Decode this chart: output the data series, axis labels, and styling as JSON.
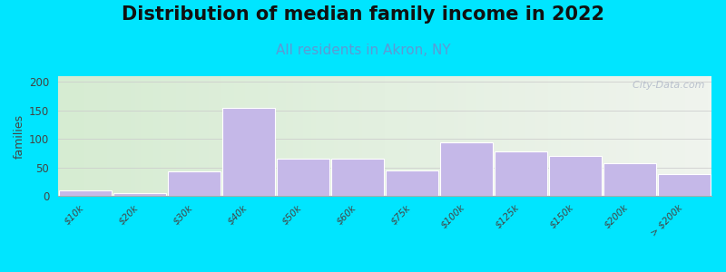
{
  "title": "Distribution of median family income in 2022",
  "subtitle": "All residents in Akron, NY",
  "ylabel": "families",
  "categories": [
    "$10k",
    "$20k",
    "$30k",
    "$40k",
    "$50k",
    "$60k",
    "$75k",
    "$100k",
    "$125k",
    "$150k",
    "$200k",
    "> $200k"
  ],
  "values": [
    10,
    5,
    43,
    155,
    66,
    66,
    44,
    94,
    78,
    70,
    57,
    38
  ],
  "bar_color": "#c5b8e8",
  "ylim": [
    0,
    210
  ],
  "yticks": [
    0,
    50,
    100,
    150,
    200
  ],
  "background_outer": "#00e5ff",
  "bg_color_left": "#d6ecd2",
  "bg_color_right": "#f0f4ee",
  "grid_color": "#cccccc",
  "title_fontsize": 15,
  "subtitle_fontsize": 11,
  "subtitle_color": "#5b9bd5",
  "watermark_text": "  City-Data.com",
  "tick_label_fontsize": 7.5,
  "ylabel_fontsize": 9,
  "title_color": "#111111"
}
